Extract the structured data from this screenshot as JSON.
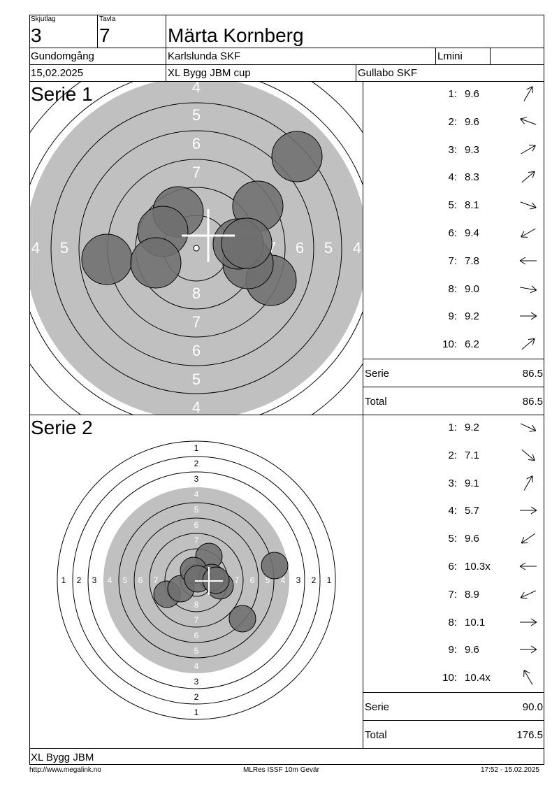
{
  "header": {
    "skjutlag_label": "Skjutlag",
    "skjutlag_value": "3",
    "tavla_label": "Tavla",
    "tavla_value": "7",
    "shooter_name": "Märta Kornberg",
    "round": "Gundomgång",
    "club": "Karlslunda SKF",
    "class": "Lmini",
    "date": "15,02.2025",
    "competition": "XL Bygg JBM cup",
    "organizer": "Gullabo SKF"
  },
  "series": [
    {
      "title": "Serie 1",
      "shots": [
        {
          "no": "1:",
          "value": "9.6",
          "dir": 300
        },
        {
          "no": "2:",
          "value": "9.6",
          "dir": 200
        },
        {
          "no": "3:",
          "value": "9.3",
          "dir": 330
        },
        {
          "no": "4:",
          "value": "8.3",
          "dir": 320
        },
        {
          "no": "5:",
          "value": "8.1",
          "dir": 20
        },
        {
          "no": "6:",
          "value": "9.4",
          "dir": 150
        },
        {
          "no": "7:",
          "value": "7.8",
          "dir": 180
        },
        {
          "no": "8:",
          "value": "9.0",
          "dir": 10
        },
        {
          "no": "9:",
          "value": "9.2",
          "dir": 0
        },
        {
          "no": "10:",
          "value": "6.2",
          "dir": 320
        }
      ],
      "serie_label": "Serie",
      "serie_total": "86.5",
      "total_label": "Total",
      "total_value": "86.5"
    },
    {
      "title": "Serie 2",
      "shots": [
        {
          "no": "1:",
          "value": "9.2",
          "dir": 25
        },
        {
          "no": "2:",
          "value": "7.1",
          "dir": 40
        },
        {
          "no": "3:",
          "value": "9.1",
          "dir": 300
        },
        {
          "no": "4:",
          "value": "5.7",
          "dir": 0
        },
        {
          "no": "5:",
          "value": "9.6",
          "dir": 145
        },
        {
          "no": "6:",
          "value": "10.3x",
          "dir": 180
        },
        {
          "no": "7:",
          "value": "8.9",
          "dir": 155
        },
        {
          "no": "8:",
          "value": "10.1",
          "dir": 0
        },
        {
          "no": "9:",
          "value": "9.6",
          "dir": 0
        },
        {
          "no": "10:",
          "value": "10.4x",
          "dir": 240
        }
      ],
      "serie_label": "Serie",
      "serie_total": "90.0",
      "total_label": "Total",
      "total_value": "176.5"
    }
  ],
  "target1": {
    "ring_labels_vertical": [
      "4",
      "5",
      "6",
      "7",
      "8",
      "7",
      "6",
      "5",
      "4"
    ],
    "ring_labels_horizontal": [
      "4",
      "5",
      "6",
      "7",
      "6",
      "5",
      "4"
    ]
  },
  "target2": {
    "ring_labels": [
      "1",
      "2",
      "3",
      "4",
      "5",
      "6",
      "7",
      "8"
    ]
  },
  "footer": {
    "sponsor": "XL Bygg JBM",
    "url": "http://www.megalink.no",
    "software": "MLRes ISSF 10m Gevär",
    "timestamp": "17:52 - 15.02.2025"
  },
  "colors": {
    "target_grey": "#c0c0c0",
    "hit_fill": "#6e6e6e",
    "line": "#000000"
  }
}
